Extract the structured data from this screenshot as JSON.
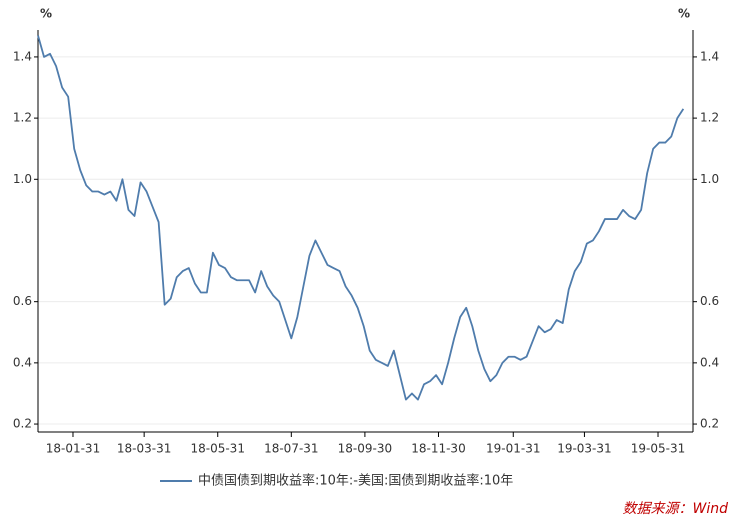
{
  "chart_data": {
    "type": "line",
    "y_label": "%",
    "y2_label": "%",
    "x": [
      "18-01-02",
      "18-01-07",
      "18-01-12",
      "18-01-17",
      "18-01-22",
      "18-01-27",
      "18-02-01",
      "18-02-06",
      "18-02-11",
      "18-02-16",
      "18-02-21",
      "18-02-26",
      "18-03-03",
      "18-03-08",
      "18-03-13",
      "18-03-18",
      "18-03-23",
      "18-03-28",
      "18-04-02",
      "18-04-07",
      "18-04-12",
      "18-04-17",
      "18-04-22",
      "18-04-27",
      "18-05-02",
      "18-05-07",
      "18-05-12",
      "18-05-17",
      "18-05-22",
      "18-05-27",
      "18-06-01",
      "18-06-06",
      "18-06-11",
      "18-06-16",
      "18-06-21",
      "18-06-26",
      "18-07-01",
      "18-07-06",
      "18-07-11",
      "18-07-16",
      "18-07-21",
      "18-07-26",
      "18-07-31",
      "18-08-05",
      "18-08-10",
      "18-08-15",
      "18-08-20",
      "18-08-25",
      "18-08-30",
      "18-09-04",
      "18-09-09",
      "18-09-14",
      "18-09-19",
      "18-09-24",
      "18-09-29",
      "18-10-04",
      "18-10-09",
      "18-10-14",
      "18-10-19",
      "18-10-24",
      "18-10-29",
      "18-11-03",
      "18-11-08",
      "18-11-13",
      "18-11-18",
      "18-11-23",
      "18-11-28",
      "18-12-03",
      "18-12-08",
      "18-12-13",
      "18-12-18",
      "18-12-23",
      "18-12-28",
      "19-01-02",
      "19-01-07",
      "19-01-12",
      "19-01-17",
      "19-01-22",
      "19-01-27",
      "19-02-01",
      "19-02-06",
      "19-02-11",
      "19-02-16",
      "19-02-21",
      "19-02-26",
      "19-03-03",
      "19-03-08",
      "19-03-13",
      "19-03-18",
      "19-03-23",
      "19-03-28",
      "19-04-02",
      "19-04-07",
      "19-04-12",
      "19-04-17",
      "19-04-22",
      "19-04-27",
      "19-05-02",
      "19-05-07",
      "19-05-12",
      "19-05-17",
      "19-05-22",
      "19-05-27",
      "19-06-01",
      "19-06-06",
      "19-06-11",
      "19-06-16",
      "19-06-21"
    ],
    "series": [
      {
        "name": "中债国债到期收益率:10年:-美国:国债到期收益率:10年",
        "color": "#4f7cac",
        "values": [
          1.47,
          1.4,
          1.41,
          1.37,
          1.3,
          1.27,
          1.1,
          1.03,
          0.98,
          0.96,
          0.96,
          0.95,
          0.96,
          0.93,
          1.0,
          0.9,
          0.88,
          0.99,
          0.96,
          0.91,
          0.86,
          0.59,
          0.61,
          0.68,
          0.7,
          0.71,
          0.66,
          0.63,
          0.63,
          0.76,
          0.72,
          0.71,
          0.68,
          0.67,
          0.67,
          0.67,
          0.63,
          0.7,
          0.65,
          0.62,
          0.6,
          0.54,
          0.48,
          0.55,
          0.65,
          0.75,
          0.8,
          0.76,
          0.72,
          0.71,
          0.7,
          0.65,
          0.62,
          0.58,
          0.52,
          0.44,
          0.41,
          0.4,
          0.39,
          0.44,
          0.36,
          0.28,
          0.3,
          0.28,
          0.33,
          0.34,
          0.36,
          0.33,
          0.4,
          0.48,
          0.55,
          0.58,
          0.52,
          0.44,
          0.38,
          0.34,
          0.36,
          0.4,
          0.42,
          0.42,
          0.41,
          0.42,
          0.47,
          0.52,
          0.5,
          0.51,
          0.54,
          0.53,
          0.64,
          0.7,
          0.73,
          0.79,
          0.8,
          0.83,
          0.87,
          0.87,
          0.87,
          0.9,
          0.88,
          0.87,
          0.9,
          1.02,
          1.1,
          1.12,
          1.12,
          1.14,
          1.2,
          1.23
        ]
      }
    ],
    "xlim": [
      "18-01-02",
      "19-06-29"
    ],
    "xticks": [
      "18-01-31",
      "18-03-31",
      "18-05-31",
      "18-07-31",
      "18-09-30",
      "18-11-30",
      "19-01-31",
      "19-03-31",
      "19-05-31"
    ],
    "ylim": [
      0.174,
      1.488
    ],
    "yticks": [
      0.2,
      0.4,
      0.6,
      {
        "value": 1,
        "label": "1.0"
      },
      1.2,
      1.4
    ],
    "grid": true,
    "source": "数据来源：Wind"
  }
}
